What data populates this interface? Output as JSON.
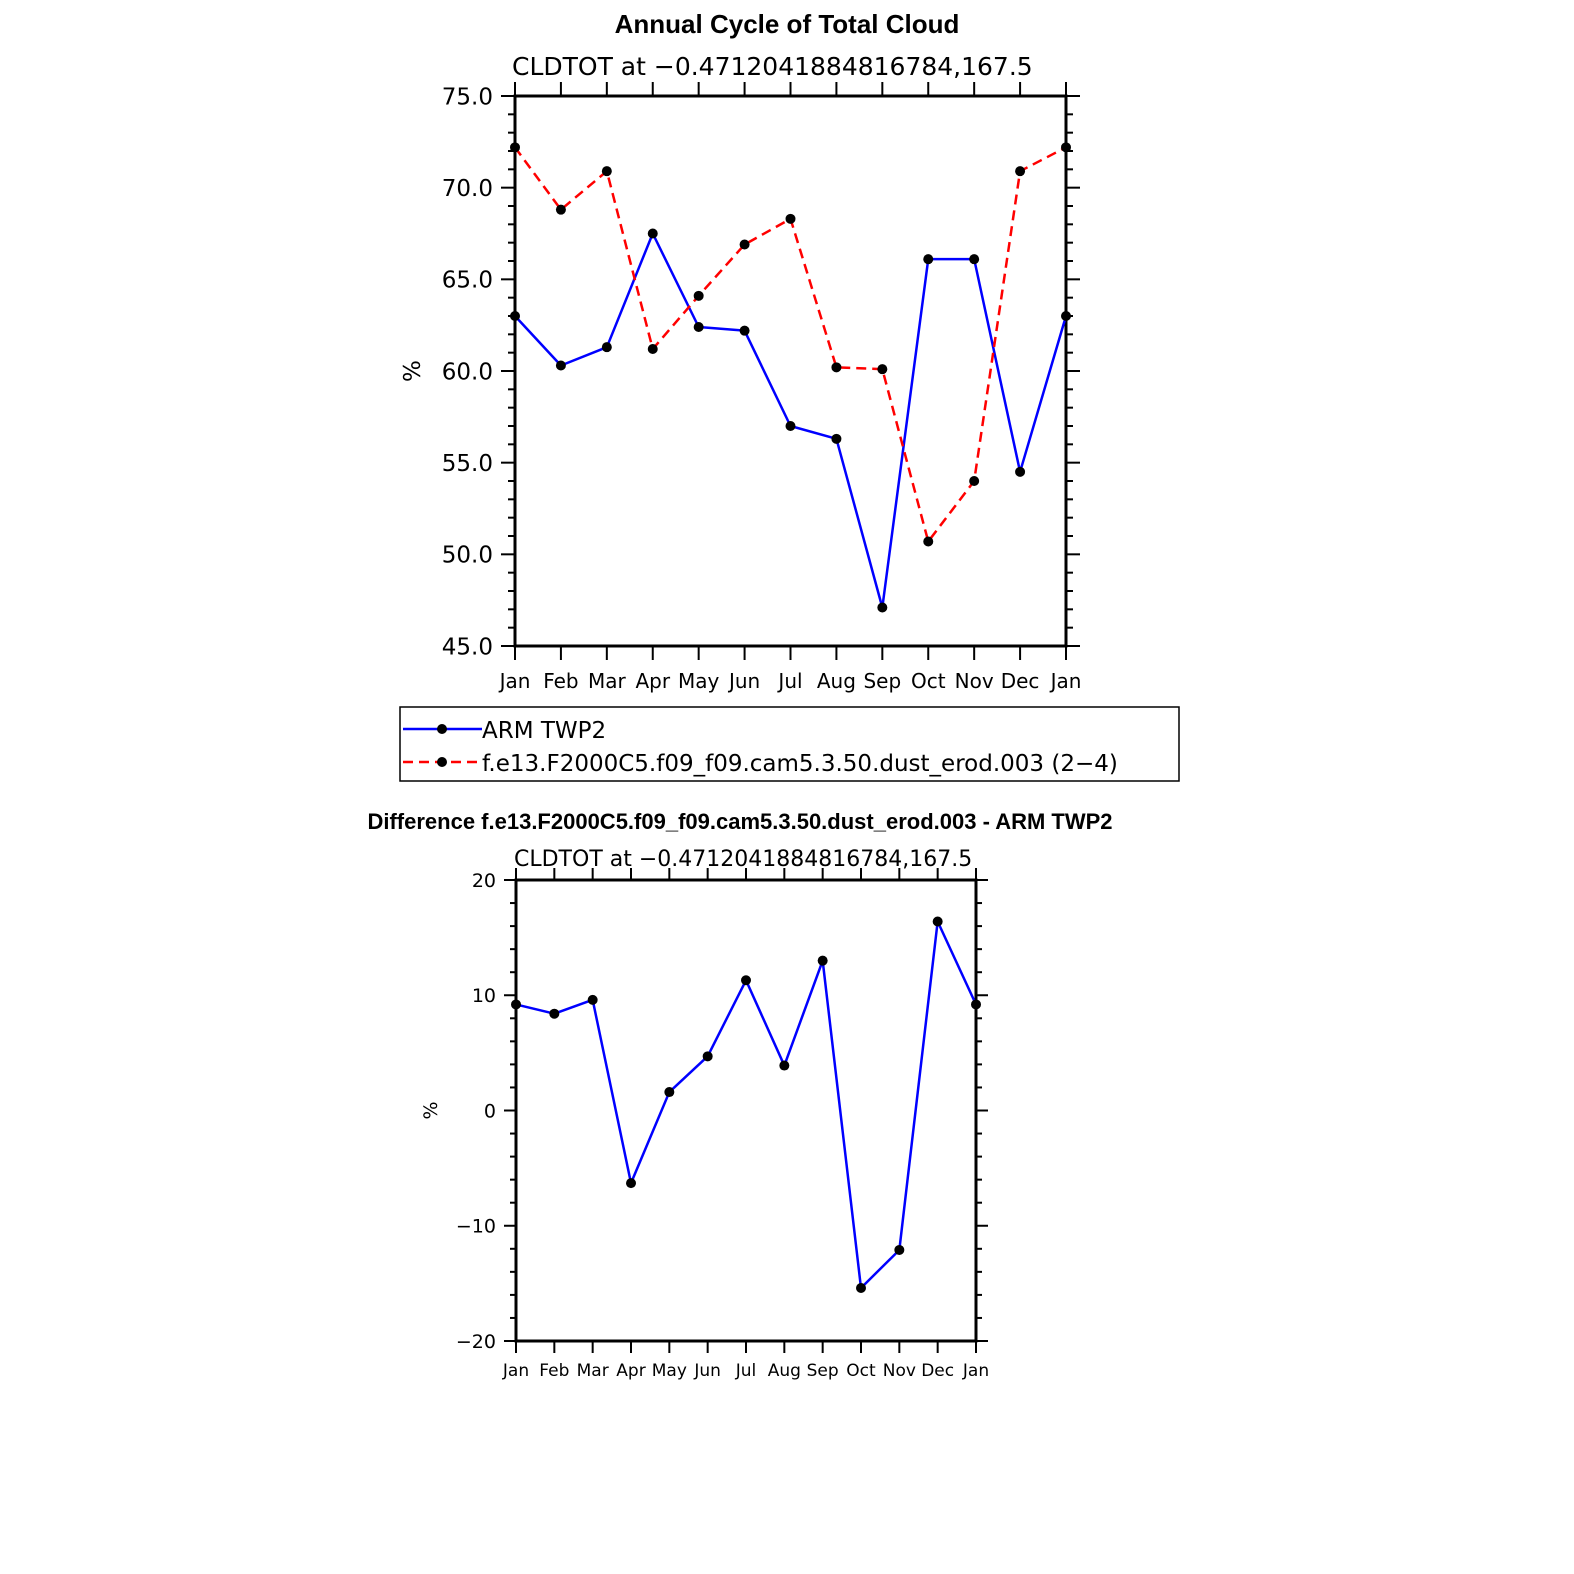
{
  "months": [
    "Jan",
    "Feb",
    "Mar",
    "Apr",
    "May",
    "Jun",
    "Jul",
    "Aug",
    "Sep",
    "Oct",
    "Nov",
    "Dec",
    "Jan"
  ],
  "colors": {
    "arm": "#0000ff",
    "model": "#ff0000",
    "axis": "#000000",
    "marker": "#000000"
  },
  "chart_data": [
    {
      "type": "line",
      "title": "Annual Cycle of Total Cloud",
      "subtitle": "CLDTOT at −0.4712041884816784,167.5",
      "ylabel": "%",
      "ylim": [
        45,
        75
      ],
      "ytick_labels": [
        "45.0",
        "50.0",
        "55.0",
        "60.0",
        "65.0",
        "70.0",
        "75.0"
      ],
      "ytick_values": [
        45,
        50,
        55,
        60,
        65,
        70,
        75
      ],
      "categories": [
        "Jan",
        "Feb",
        "Mar",
        "Apr",
        "May",
        "Jun",
        "Jul",
        "Aug",
        "Sep",
        "Oct",
        "Nov",
        "Dec",
        "Jan"
      ],
      "series": [
        {
          "name": "ARM TWP2",
          "style": "solid",
          "color": "#0000ff",
          "values": [
            63.0,
            60.3,
            61.3,
            67.5,
            62.4,
            62.2,
            57.0,
            56.3,
            47.1,
            66.1,
            66.1,
            54.5,
            63.0
          ]
        },
        {
          "name": "f.e13.F2000C5.f09_f09.cam5.3.50.dust_erod.003 (2−4)",
          "style": "dashed",
          "color": "#ff0000",
          "values": [
            72.2,
            68.8,
            70.9,
            61.2,
            64.1,
            66.9,
            68.3,
            60.2,
            60.1,
            50.7,
            54.0,
            70.9,
            72.2
          ]
        }
      ],
      "legend_placement": "below"
    },
    {
      "type": "line",
      "title": "Difference f.e13.F2000C5.f09_f09.cam5.3.50.dust_erod.003 - ARM TWP2",
      "subtitle": "CLDTOT at −0.4712041884816784,167.5",
      "ylabel": "%",
      "ylim": [
        -20,
        20
      ],
      "ytick_labels": [
        "−20",
        "−10",
        "0",
        "10",
        "20"
      ],
      "ytick_values": [
        -20,
        -10,
        0,
        10,
        20
      ],
      "categories": [
        "Jan",
        "Feb",
        "Mar",
        "Apr",
        "May",
        "Jun",
        "Jul",
        "Aug",
        "Sep",
        "Oct",
        "Nov",
        "Dec",
        "Jan"
      ],
      "series": [
        {
          "style": "solid",
          "color": "#0000ff",
          "values": [
            9.2,
            8.4,
            9.6,
            -6.3,
            1.6,
            4.7,
            11.3,
            3.9,
            13.0,
            -15.4,
            -12.1,
            16.4,
            9.2
          ]
        }
      ]
    }
  ]
}
